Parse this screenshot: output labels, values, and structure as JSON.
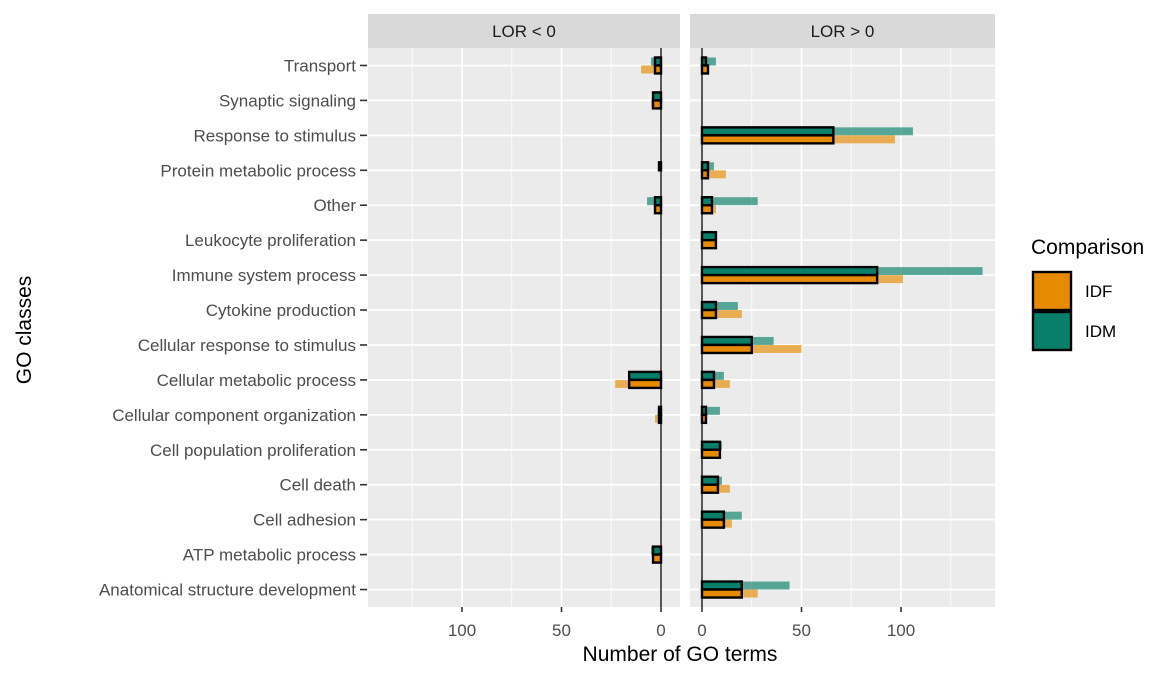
{
  "chart_data": {
    "type": "bar",
    "orientation": "horizontal",
    "facets": [
      "LOR < 0",
      "LOR > 0"
    ],
    "facet_directions": [
      -1,
      1
    ],
    "categories": [
      "Transport",
      "Synaptic signaling",
      "Response to stimulus",
      "Protein metabolic process",
      "Other",
      "Leukocyte proliferation",
      "Immune system process",
      "Cytokine production",
      "Cellular response to stimulus",
      "Cellular metabolic process",
      "Cellular component organization",
      "Cell population proliferation",
      "Cell death",
      "Cell adhesion",
      "ATP metabolic process",
      "Anatomical structure development"
    ],
    "xlabel": "Number of GO terms",
    "ylabel": "GO classes",
    "xlim": [
      0,
      145
    ],
    "x_ticks": [
      0,
      50,
      100
    ],
    "legend": {
      "title": "Comparison",
      "position": "right",
      "entries": [
        {
          "name": "IDF",
          "color": "#E68A00"
        },
        {
          "name": "IDM",
          "color": "#087F69"
        }
      ]
    },
    "series": [
      {
        "name": "IDF",
        "color": "#E68A00",
        "panel_values": {
          "LOR < 0": {
            "all": [
              10,
              5,
              0,
              0,
              3,
              0,
              0,
              0,
              0,
              23,
              3,
              0,
              0,
              0,
              4,
              0
            ],
            "overlap": [
              3,
              4,
              0,
              0,
              3,
              0,
              0,
              0,
              0,
              16,
              1,
              0,
              0,
              0,
              4,
              0
            ]
          },
          "LOR > 0": {
            "all": [
              3,
              0,
              97,
              12,
              7,
              7,
              101,
              20,
              50,
              14,
              2,
              9,
              14,
              15,
              0,
              28
            ],
            "overlap": [
              3,
              0,
              66,
              3,
              5,
              7,
              88,
              7,
              25,
              6,
              2,
              9,
              8,
              11,
              0,
              20
            ]
          }
        }
      },
      {
        "name": "IDM",
        "color": "#087F69",
        "panel_values": {
          "LOR < 0": {
            "all": [
              5,
              4,
              0,
              1,
              7,
              0,
              0,
              0,
              0,
              16,
              1,
              0,
              0,
              0,
              5,
              0
            ],
            "overlap": [
              3,
              4,
              0,
              1,
              3,
              0,
              0,
              0,
              0,
              16,
              1,
              0,
              0,
              0,
              4,
              0
            ]
          },
          "LOR > 0": {
            "all": [
              7,
              0,
              106,
              6,
              28,
              7,
              141,
              18,
              36,
              11,
              9,
              10,
              10,
              20,
              0,
              44
            ],
            "overlap": [
              2,
              0,
              66,
              3,
              5,
              7,
              88,
              7,
              25,
              6,
              2,
              9,
              8,
              11,
              0,
              20
            ]
          }
        }
      }
    ],
    "grid": true,
    "panel_background": "#EBEBEB",
    "strip_background": "#D9D9D9"
  }
}
